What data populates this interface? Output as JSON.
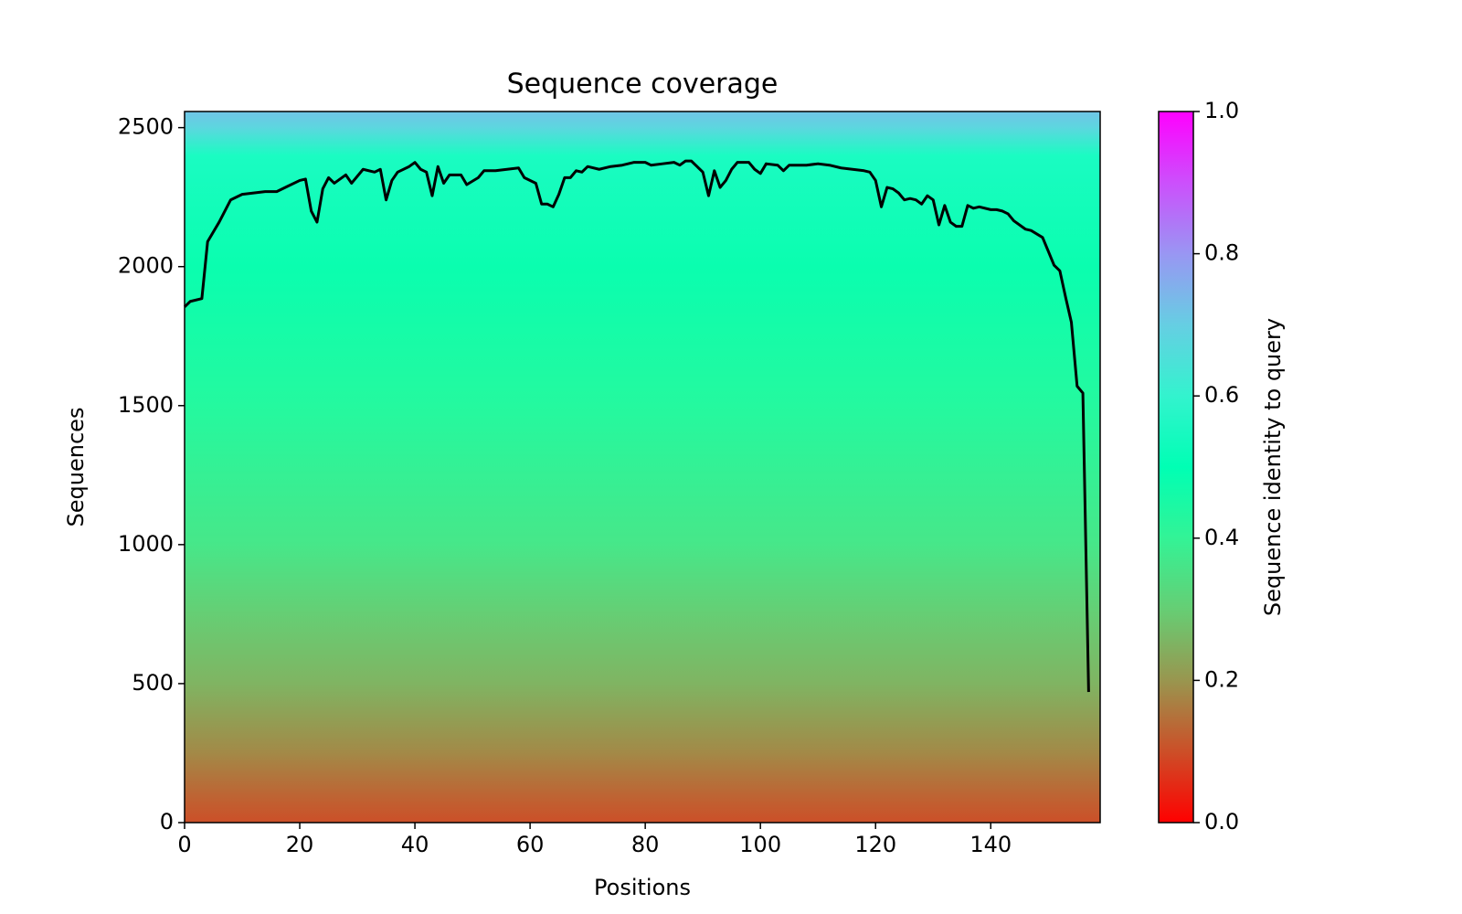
{
  "chart_data": {
    "type": "coverage",
    "title": "Sequence coverage",
    "xlabel": "Positions",
    "ylabel": "Sequences",
    "x": [
      0,
      1,
      3,
      4,
      6,
      8,
      10,
      12,
      14,
      16,
      18,
      20,
      21,
      22,
      23,
      24,
      25,
      26,
      28,
      29,
      31,
      33,
      34,
      35,
      36,
      37,
      39,
      40,
      41,
      42,
      43,
      44,
      45,
      46,
      48,
      49,
      51,
      52,
      54,
      56,
      58,
      59,
      61,
      62,
      63,
      64,
      65,
      66,
      67,
      68,
      69,
      70,
      72,
      74,
      76,
      78,
      80,
      81,
      83,
      85,
      86,
      87,
      88,
      90,
      91,
      92,
      93,
      94,
      95,
      96,
      98,
      99,
      100,
      101,
      103,
      104,
      105,
      108,
      110,
      112,
      114,
      116,
      118,
      119,
      120,
      121,
      122,
      123,
      124,
      125,
      126,
      127,
      128,
      129,
      130,
      131,
      132,
      133,
      134,
      135,
      136,
      137,
      138,
      140,
      141,
      142,
      143,
      144,
      146,
      147,
      149,
      150,
      151,
      152,
      153,
      154,
      155,
      156,
      157
    ],
    "values": [
      1855,
      1875,
      1885,
      2090,
      2160,
      2240,
      2260,
      2265,
      2270,
      2270,
      2290,
      2310,
      2315,
      2200,
      2160,
      2280,
      2320,
      2300,
      2330,
      2300,
      2350,
      2340,
      2350,
      2240,
      2310,
      2340,
      2360,
      2375,
      2350,
      2340,
      2255,
      2360,
      2300,
      2330,
      2330,
      2295,
      2320,
      2345,
      2345,
      2350,
      2355,
      2320,
      2300,
      2225,
      2225,
      2215,
      2260,
      2320,
      2320,
      2345,
      2340,
      2360,
      2350,
      2360,
      2365,
      2375,
      2375,
      2365,
      2370,
      2375,
      2365,
      2380,
      2380,
      2340,
      2255,
      2345,
      2285,
      2310,
      2350,
      2375,
      2375,
      2350,
      2335,
      2370,
      2365,
      2345,
      2365,
      2365,
      2370,
      2365,
      2355,
      2350,
      2345,
      2340,
      2310,
      2215,
      2285,
      2280,
      2265,
      2240,
      2245,
      2240,
      2225,
      2255,
      2240,
      2150,
      2220,
      2160,
      2145,
      2145,
      2220,
      2210,
      2215,
      2205,
      2205,
      2200,
      2190,
      2165,
      2135,
      2130,
      2105,
      2055,
      2005,
      1985,
      1890,
      1800,
      1570,
      1545,
      470
    ],
    "color": "#000000",
    "heatmap": {
      "y": [
        0,
        100,
        250,
        500,
        750,
        1000,
        1500,
        2000,
        2400,
        2500,
        2558
      ],
      "identity": [
        0.1,
        0.13,
        0.18,
        0.25,
        0.3,
        0.36,
        0.43,
        0.48,
        0.55,
        0.68,
        0.72
      ]
    },
    "colormap": "rainbow_r",
    "xlim": [
      0,
      159
    ],
    "xticks": [
      0,
      20,
      40,
      60,
      80,
      100,
      120,
      140
    ],
    "ylim": [
      0,
      2558
    ],
    "yticks": [
      0,
      500,
      1000,
      1500,
      2000,
      2500
    ],
    "colorbar": {
      "label": "Sequence identity to query",
      "lim": [
        0,
        1
      ],
      "ticks": [
        {
          "value": 0,
          "label": "0.0"
        },
        0.2,
        0.4,
        0.6,
        0.8,
        {
          "value": 1,
          "label": "1.0"
        }
      ]
    }
  }
}
